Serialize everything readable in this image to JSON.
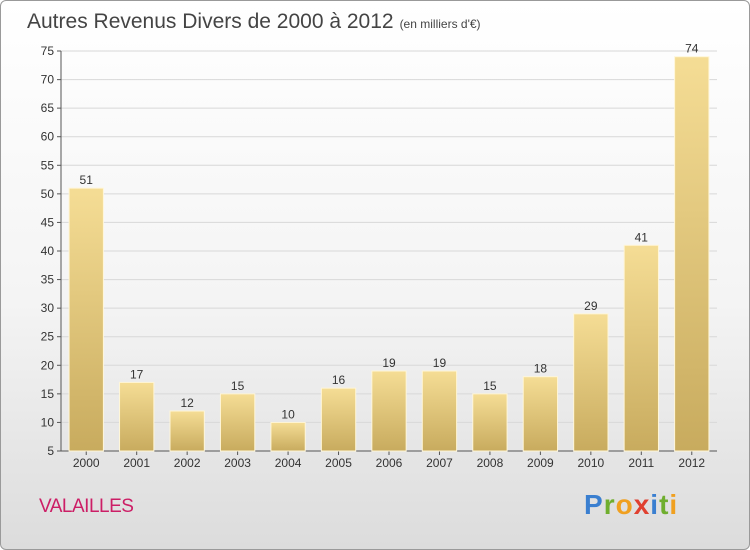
{
  "header": {
    "title": "Autres Revenus Divers de 2000 à 2012",
    "subtitle": "(en milliers d'€)"
  },
  "footer": {
    "commune": "VALAILLES",
    "brand": "Proxiti"
  },
  "colors": {
    "bar_light": "#f5dd95",
    "bar_dark": "#c8ab5e",
    "grid": "#d8d8d8",
    "axis": "#555555",
    "commune": "#cc1e66"
  },
  "chart_data": {
    "type": "bar",
    "title": "Autres Revenus Divers de 2000 à 2012",
    "subtitle": "(en milliers d'€)",
    "xlabel": "",
    "ylabel": "",
    "categories": [
      "2000",
      "2001",
      "2002",
      "2003",
      "2004",
      "2005",
      "2006",
      "2007",
      "2008",
      "2009",
      "2010",
      "2011",
      "2012"
    ],
    "values": [
      51,
      17,
      12,
      15,
      10,
      16,
      19,
      19,
      15,
      18,
      29,
      41,
      74
    ],
    "ylim": [
      5,
      75
    ],
    "yticks": [
      5,
      10,
      15,
      20,
      25,
      30,
      35,
      40,
      45,
      50,
      55,
      60,
      65,
      70,
      75
    ],
    "grid": true,
    "legend": "none"
  }
}
